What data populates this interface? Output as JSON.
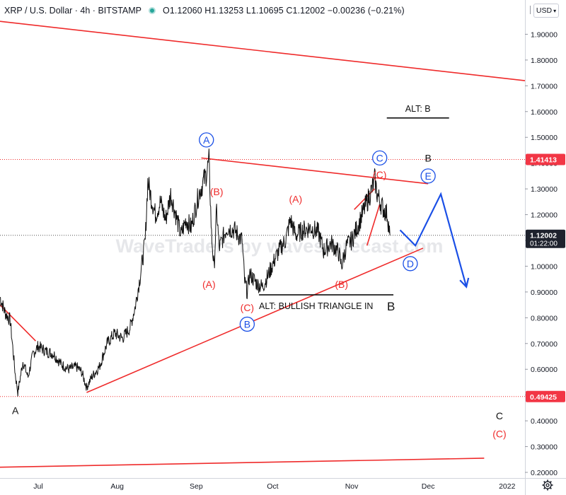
{
  "header": {
    "symbol": "XRP / U.S. Dollar · 4h · BITSTAMP",
    "ohlc": "O1.12060  H1.13253  L1.10695  C1.12002  −0.00236 (−0.21%)"
  },
  "toolbar": {
    "currency": "USD",
    "settings_icon": "gear-icon",
    "bar_icon": "bars-icon"
  },
  "watermark": "WaveTraders by wavesforecast.com",
  "colors": {
    "red": "#ef2b2b",
    "blue": "#1a4fe6",
    "price_tag": "#1e222d",
    "red_tag": "#f23645"
  },
  "chart_data": {
    "type": "line",
    "price_series": "XRP / U.S. Dollar 4h candles",
    "ylim": [
      0.2,
      2.0
    ],
    "x_range": [
      "2021-06-16",
      "2022-01-08"
    ],
    "y_ticks": [
      "0.20000",
      "0.30000",
      "0.40000",
      "0.50000",
      "0.60000",
      "0.70000",
      "0.80000",
      "0.90000",
      "1.00000",
      "1.10000",
      "1.20000",
      "1.30000",
      "1.40000",
      "1.50000",
      "1.60000",
      "1.70000",
      "1.80000",
      "1.90000"
    ],
    "x_ticks": [
      {
        "label": "Jul",
        "date": "2021-07-01"
      },
      {
        "label": "Aug",
        "date": "2021-08-01"
      },
      {
        "label": "Sep",
        "date": "2021-09-01"
      },
      {
        "label": "Oct",
        "date": "2021-10-01"
      },
      {
        "label": "Nov",
        "date": "2021-11-01"
      },
      {
        "label": "Dec",
        "date": "2021-12-01"
      },
      {
        "label": "2022",
        "date": "2022-01-01"
      }
    ],
    "price_path": [
      [
        "2021-06-16",
        0.88
      ],
      [
        "2021-06-18",
        0.82
      ],
      [
        "2021-06-20",
        0.79
      ],
      [
        "2021-06-22",
        0.58
      ],
      [
        "2021-06-23",
        0.51
      ],
      [
        "2021-06-25",
        0.63
      ],
      [
        "2021-06-27",
        0.57
      ],
      [
        "2021-06-29",
        0.66
      ],
      [
        "2021-07-01",
        0.69
      ],
      [
        "2021-07-04",
        0.67
      ],
      [
        "2021-07-07",
        0.66
      ],
      [
        "2021-07-10",
        0.62
      ],
      [
        "2021-07-13",
        0.6
      ],
      [
        "2021-07-16",
        0.61
      ],
      [
        "2021-07-18",
        0.59
      ],
      [
        "2021-07-20",
        0.53
      ],
      [
        "2021-07-22",
        0.57
      ],
      [
        "2021-07-25",
        0.61
      ],
      [
        "2021-07-28",
        0.7
      ],
      [
        "2021-07-31",
        0.74
      ],
      [
        "2021-08-03",
        0.72
      ],
      [
        "2021-08-06",
        0.76
      ],
      [
        "2021-08-08",
        0.84
      ],
      [
        "2021-08-10",
        0.96
      ],
      [
        "2021-08-12",
        1.1
      ],
      [
        "2021-08-13",
        1.33
      ],
      [
        "2021-08-14",
        1.28
      ],
      [
        "2021-08-16",
        1.2
      ],
      [
        "2021-08-18",
        1.25
      ],
      [
        "2021-08-20",
        1.18
      ],
      [
        "2021-08-22",
        1.28
      ],
      [
        "2021-08-24",
        1.2
      ],
      [
        "2021-08-26",
        1.12
      ],
      [
        "2021-08-28",
        1.18
      ],
      [
        "2021-08-30",
        1.15
      ],
      [
        "2021-09-02",
        1.28
      ],
      [
        "2021-09-05",
        1.36
      ],
      [
        "2021-09-06",
        1.41
      ],
      [
        "2021-09-07",
        1.12
      ],
      [
        "2021-09-08",
        0.99
      ],
      [
        "2021-09-09",
        1.22
      ],
      [
        "2021-09-10",
        1.07
      ],
      [
        "2021-09-13",
        1.15
      ],
      [
        "2021-09-16",
        1.14
      ],
      [
        "2021-09-19",
        1.1
      ],
      [
        "2021-09-20",
        0.94
      ],
      [
        "2021-09-21",
        0.9
      ],
      [
        "2021-09-22",
        0.97
      ],
      [
        "2021-09-25",
        0.93
      ],
      [
        "2021-09-27",
        0.92
      ],
      [
        "2021-09-29",
        0.96
      ],
      [
        "2021-10-02",
        1.03
      ],
      [
        "2021-10-04",
        1.07
      ],
      [
        "2021-10-06",
        1.1
      ],
      [
        "2021-10-08",
        1.18
      ],
      [
        "2021-10-10",
        1.12
      ],
      [
        "2021-10-13",
        1.14
      ],
      [
        "2021-10-16",
        1.15
      ],
      [
        "2021-10-19",
        1.13
      ],
      [
        "2021-10-21",
        1.06
      ],
      [
        "2021-10-24",
        1.09
      ],
      [
        "2021-10-27",
        1.05
      ],
      [
        "2021-10-28",
        1.0
      ],
      [
        "2021-10-30",
        1.08
      ],
      [
        "2021-11-01",
        1.1
      ],
      [
        "2021-11-04",
        1.17
      ],
      [
        "2021-11-07",
        1.25
      ],
      [
        "2021-11-09",
        1.3
      ],
      [
        "2021-11-10",
        1.34
      ],
      [
        "2021-11-11",
        1.28
      ],
      [
        "2021-11-13",
        1.23
      ],
      [
        "2021-11-15",
        1.2
      ],
      [
        "2021-11-16",
        1.12
      ]
    ],
    "horizontal_levels": [
      1.41413,
      1.12002,
      0.49425
    ],
    "price_tags": [
      {
        "value": 1.41413,
        "label": "1.41413",
        "color": "#f23645"
      },
      {
        "value": 1.12002,
        "label": "1.12002",
        "sub": "01:22:00",
        "color": "#1e222d"
      },
      {
        "value": 0.49425,
        "label": "0.49425",
        "color": "#f23645"
      }
    ],
    "trend_lines": [
      {
        "name": "long-term-upper",
        "from": [
          "2021-06-16",
          1.95
        ],
        "to": [
          "2022-01-08",
          1.72
        ]
      },
      {
        "name": "triangle-upper",
        "from": [
          "2021-09-03",
          1.42
        ],
        "to": [
          "2021-12-01",
          1.32
        ]
      },
      {
        "name": "triangle-lower",
        "from": [
          "2021-07-20",
          0.51
        ],
        "to": [
          "2021-11-29",
          1.07
        ]
      },
      {
        "name": "long-term-lower",
        "from": [
          "2021-06-16",
          0.22
        ],
        "to": [
          "2021-12-23",
          0.255
        ]
      },
      {
        "name": "wave-c-channel-upper",
        "from": [
          "2021-11-02",
          1.22
        ],
        "to": [
          "2021-11-10",
          1.3
        ]
      },
      {
        "name": "wave-c-channel-lower",
        "from": [
          "2021-11-07",
          1.08
        ],
        "to": [
          "2021-11-12",
          1.24
        ]
      },
      {
        "name": "left-decline",
        "from": [
          "2021-06-16",
          0.85
        ],
        "to": [
          "2021-06-30",
          0.71
        ]
      }
    ],
    "projection": [
      [
        "2021-11-20",
        1.14
      ],
      [
        "2021-11-26",
        1.08
      ],
      [
        "2021-12-06",
        1.28
      ],
      [
        "2021-12-16",
        0.92
      ]
    ],
    "annotations": [
      {
        "text": "A",
        "style": "plain-black",
        "date": "2021-06-22",
        "value": 0.44
      },
      {
        "text": "A",
        "style": "circle-blue",
        "date": "2021-09-05",
        "value": 1.49
      },
      {
        "text": "(B)",
        "style": "red",
        "date": "2021-09-09",
        "value": 1.29
      },
      {
        "text": "(A)",
        "style": "red",
        "date": "2021-09-06",
        "value": 0.93
      },
      {
        "text": "(C)",
        "style": "red",
        "date": "2021-09-21",
        "value": 0.84
      },
      {
        "text": "B",
        "style": "circle-blue",
        "date": "2021-09-21",
        "value": 0.775
      },
      {
        "text": "(A)",
        "style": "red",
        "date": "2021-10-10",
        "value": 1.26
      },
      {
        "text": "(B)",
        "style": "red",
        "date": "2021-10-28",
        "value": 0.93
      },
      {
        "text": "C",
        "style": "circle-blue",
        "date": "2021-11-12",
        "value": 1.42
      },
      {
        "text": "(C)",
        "style": "red",
        "date": "2021-11-12",
        "value": 1.355
      },
      {
        "text": "B",
        "style": "plain-black",
        "date": "2021-12-01",
        "value": 1.42
      },
      {
        "text": "E",
        "style": "circle-blue",
        "date": "2021-12-01",
        "value": 1.35
      },
      {
        "text": "D",
        "style": "circle-blue",
        "date": "2021-11-24",
        "value": 1.01
      },
      {
        "text": "C",
        "style": "plain-black",
        "date": "2021-12-29",
        "value": 0.42
      },
      {
        "text": "(C)",
        "style": "red",
        "date": "2021-12-29",
        "value": 0.35
      }
    ],
    "text_boxes": [
      {
        "text": "ALT: B",
        "underline": "above-none",
        "date": "2021-11-27",
        "value": 1.6
      },
      {
        "text": "ALT: BULLISH TRIANGLE IN ",
        "suffix": "B",
        "date": "2021-10-22",
        "value": 0.845
      }
    ]
  }
}
